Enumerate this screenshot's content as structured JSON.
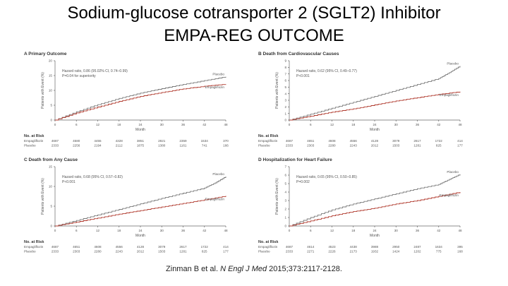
{
  "slide": {
    "title_line1": "Sodium-glucose cotransporter 2 (SGLT2) Inhibitor",
    "title_line2": "EMPA-REG OUTCOME",
    "citation_pre": "Zinman B et al. ",
    "citation_journal": "N Engl J Med",
    "citation_post": " 2015;373:2117-2128."
  },
  "chart_data": [
    {
      "panel": "A",
      "type": "line",
      "title": "A  Primary Outcome",
      "ylabel": "Patients with Event (%)",
      "xlabel": "Month",
      "ylim": [
        0,
        20
      ],
      "yticks": [
        0,
        5,
        10,
        15,
        20
      ],
      "xticks": [
        0,
        6,
        12,
        18,
        24,
        30,
        36,
        42,
        48
      ],
      "annotation": [
        "Hazard ratio, 0.86 (95.02% CI, 0.74–0.99)",
        "P=0.04 for superiority"
      ],
      "series": [
        {
          "name": "Placebo",
          "color": "#7a7a7a",
          "x": [
            0,
            6,
            12,
            18,
            24,
            30,
            36,
            42,
            48
          ],
          "y": [
            0,
            2.8,
            5.2,
            7.3,
            9.1,
            10.6,
            12.0,
            13.3,
            14.6
          ]
        },
        {
          "name": "Empagliflozin",
          "color": "#b03a2e",
          "x": [
            0,
            6,
            12,
            18,
            24,
            30,
            36,
            42,
            48
          ],
          "y": [
            0,
            2.4,
            4.4,
            6.3,
            8.0,
            9.3,
            10.5,
            11.4,
            12.1
          ]
        }
      ],
      "risk_header": "No. at Risk",
      "risk_rows": [
        {
          "label": "Empagliflozin",
          "values": [
            "4687",
            "4580",
            "4455",
            "4328",
            "3851",
            "2821",
            "2359",
            "1534",
            "370"
          ]
        },
        {
          "label": "Placebo",
          "values": [
            "2333",
            "2256",
            "2194",
            "2112",
            "1875",
            "1380",
            "1161",
            "741",
            "166"
          ]
        }
      ]
    },
    {
      "panel": "B",
      "type": "line",
      "title": "B  Death from Cardiovascular Causes",
      "ylabel": "Patients with Event (%)",
      "xlabel": "Month",
      "ylim": [
        0,
        9
      ],
      "yticks": [
        0,
        1,
        2,
        3,
        4,
        5,
        6,
        7,
        8,
        9
      ],
      "xticks": [
        0,
        6,
        12,
        18,
        24,
        30,
        36,
        42,
        48
      ],
      "annotation": [
        "Hazard ratio, 0.62 (95% CI, 0.49–0.77)",
        "P<0.001"
      ],
      "series": [
        {
          "name": "Placebo",
          "color": "#7a7a7a",
          "x": [
            0,
            6,
            12,
            18,
            24,
            30,
            36,
            42,
            45,
            48
          ],
          "y": [
            0,
            0.9,
            1.8,
            2.7,
            3.6,
            4.5,
            5.4,
            6.3,
            7.2,
            8.2
          ]
        },
        {
          "name": "Empagliflozin",
          "color": "#b03a2e",
          "x": [
            0,
            6,
            12,
            18,
            24,
            30,
            36,
            42,
            48
          ],
          "y": [
            0,
            0.6,
            1.2,
            1.7,
            2.3,
            2.9,
            3.4,
            3.9,
            4.3
          ]
        }
      ],
      "risk_header": "No. at Risk",
      "risk_rows": [
        {
          "label": "Empagliflozin",
          "values": [
            "4687",
            "4651",
            "4608",
            "4556",
            "4128",
            "3079",
            "2617",
            "1722",
            "414"
          ]
        },
        {
          "label": "Placebo",
          "values": [
            "2333",
            "2303",
            "2280",
            "2243",
            "2012",
            "1503",
            "1281",
            "825",
            "177"
          ]
        }
      ]
    },
    {
      "panel": "C",
      "type": "line",
      "title": "C  Death from Any Cause",
      "ylabel": "Patients with Event (%)",
      "xlabel": "Month",
      "ylim": [
        0,
        15
      ],
      "yticks": [
        0,
        5,
        10,
        15
      ],
      "xticks": [
        0,
        6,
        12,
        18,
        24,
        30,
        36,
        42,
        48
      ],
      "annotation": [
        "Hazard ratio, 0.68 (95% CI, 0.57–0.82)",
        "P<0.001"
      ],
      "series": [
        {
          "name": "Placebo",
          "color": "#7a7a7a",
          "x": [
            0,
            6,
            12,
            18,
            24,
            30,
            36,
            42,
            45,
            48
          ],
          "y": [
            0,
            1.4,
            2.8,
            4.2,
            5.6,
            7.0,
            8.3,
            9.6,
            10.9,
            12.5
          ]
        },
        {
          "name": "Empagliflozin",
          "color": "#b03a2e",
          "x": [
            0,
            6,
            12,
            18,
            24,
            30,
            36,
            42,
            48
          ],
          "y": [
            0,
            1.0,
            2.0,
            3.0,
            3.9,
            4.8,
            5.7,
            6.6,
            7.6
          ]
        }
      ],
      "risk_header": "No. at Risk",
      "risk_rows": [
        {
          "label": "Empagliflozin",
          "values": [
            "4687",
            "4651",
            "4608",
            "4556",
            "4128",
            "3079",
            "2617",
            "1722",
            "414"
          ]
        },
        {
          "label": "Placebo",
          "values": [
            "2333",
            "2303",
            "2280",
            "2243",
            "2012",
            "1503",
            "1281",
            "825",
            "177"
          ]
        }
      ]
    },
    {
      "panel": "D",
      "type": "line",
      "title": "D  Hospitalization for Heart Failure",
      "ylabel": "Patients with Event (%)",
      "xlabel": "Month",
      "ylim": [
        0,
        7
      ],
      "yticks": [
        0,
        1,
        2,
        3,
        4,
        5,
        6,
        7
      ],
      "xticks": [
        0,
        6,
        12,
        18,
        24,
        30,
        36,
        42,
        48
      ],
      "annotation": [
        "Hazard ratio, 0.65 (95% CI, 0.50–0.85)",
        "P=0.002"
      ],
      "series": [
        {
          "name": "Placebo",
          "color": "#7a7a7a",
          "x": [
            0,
            6,
            12,
            18,
            24,
            30,
            36,
            42,
            45,
            48
          ],
          "y": [
            0,
            1.0,
            1.9,
            2.6,
            3.2,
            3.8,
            4.4,
            4.9,
            5.5,
            6.1
          ]
        },
        {
          "name": "Empagliflozin",
          "color": "#b03a2e",
          "x": [
            0,
            6,
            12,
            18,
            24,
            30,
            36,
            42,
            48
          ],
          "y": [
            0,
            0.6,
            1.2,
            1.7,
            2.1,
            2.6,
            3.0,
            3.5,
            4.0
          ]
        }
      ],
      "risk_header": "No. at Risk",
      "risk_rows": [
        {
          "label": "Empagliflozin",
          "values": [
            "4687",
            "4614",
            "4523",
            "4438",
            "3988",
            "2950",
            "2487",
            "1634",
            "395"
          ]
        },
        {
          "label": "Placebo",
          "values": [
            "2333",
            "2271",
            "2226",
            "2173",
            "1932",
            "1424",
            "1202",
            "775",
            "168"
          ]
        }
      ]
    }
  ]
}
